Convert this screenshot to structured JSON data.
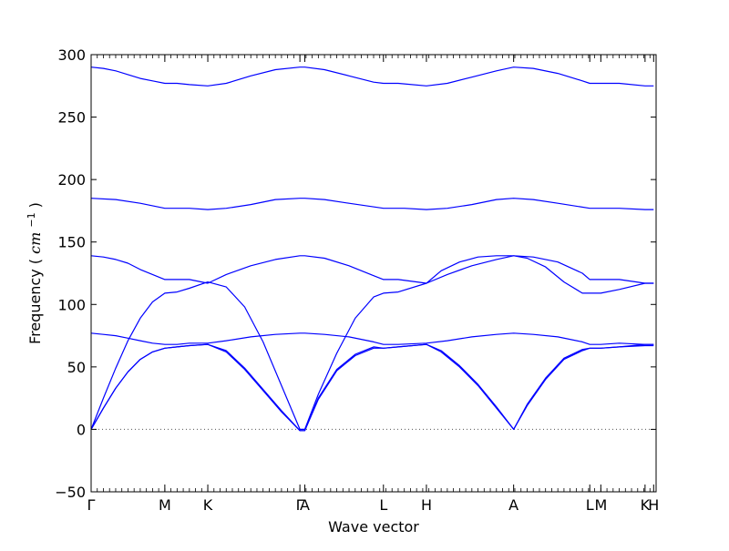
{
  "chart_data": {
    "type": "line",
    "title": "",
    "xlabel": "Wave vector",
    "ylabel": "Frequency",
    "ylabel_unit": "cm",
    "ylabel_unit_exp": "−1",
    "ylim": [
      -50,
      300
    ],
    "yticks": [
      -50,
      0,
      50,
      100,
      150,
      200,
      250,
      300
    ],
    "ytick_labels": [
      "−50",
      "0",
      "50",
      "100",
      "150",
      "200",
      "250",
      "300"
    ],
    "xlim": [
      0,
      4.6
    ],
    "xticks": [
      {
        "x": 0.0,
        "label": "Γ"
      },
      {
        "x": 0.6,
        "label": "M"
      },
      {
        "x": 0.95,
        "label": "K"
      },
      {
        "x": 1.7,
        "label": "Γ"
      },
      {
        "x": 1.74,
        "label": "A"
      },
      {
        "x": 2.38,
        "label": "L"
      },
      {
        "x": 2.73,
        "label": "H"
      },
      {
        "x": 3.44,
        "label": "A"
      },
      {
        "x": 4.06,
        "label": "L"
      },
      {
        "x": 4.15,
        "label": "M"
      },
      {
        "x": 4.51,
        "label": "K"
      },
      {
        "x": 4.58,
        "label": "H"
      }
    ],
    "zero_line": {
      "y": 0,
      "style": "dotted",
      "color": "#555555"
    },
    "line_color": "#0000ff",
    "grid": false,
    "series": [
      {
        "x": [
          0.0,
          0.1,
          0.2,
          0.3,
          0.4,
          0.5,
          0.6,
          0.7,
          0.8,
          0.95,
          1.1,
          1.3,
          1.5,
          1.7,
          1.74,
          1.9,
          2.1,
          2.3,
          2.38,
          2.5,
          2.73,
          2.9,
          3.1,
          3.3,
          3.44,
          3.6,
          3.8,
          4.0,
          4.06,
          4.15,
          4.3,
          4.51,
          4.58
        ],
        "y": [
          290,
          289,
          287,
          284,
          281,
          279,
          277,
          277,
          276,
          275,
          277,
          283,
          288,
          290,
          290,
          288,
          283,
          278,
          277,
          277,
          275,
          277,
          282,
          287,
          290,
          289,
          285,
          279,
          277,
          277,
          277,
          275,
          275
        ]
      },
      {
        "x": [
          0.0,
          0.2,
          0.4,
          0.6,
          0.8,
          0.95,
          1.1,
          1.3,
          1.5,
          1.7,
          1.74,
          1.9,
          2.1,
          2.38,
          2.55,
          2.73,
          2.9,
          3.1,
          3.3,
          3.44,
          3.6,
          3.8,
          4.06,
          4.15,
          4.3,
          4.51,
          4.58
        ],
        "y": [
          185,
          184,
          181,
          177,
          177,
          176,
          177,
          180,
          184,
          185,
          185,
          184,
          181,
          177,
          177,
          176,
          177,
          180,
          184,
          185,
          184,
          181,
          177,
          177,
          177,
          176,
          176
        ]
      },
      {
        "x": [
          0.0,
          0.1,
          0.2,
          0.3,
          0.4,
          0.5,
          0.6,
          0.7,
          0.8,
          0.95,
          1.1,
          1.3,
          1.5,
          1.7,
          1.74,
          1.9,
          2.1,
          2.3,
          2.38,
          2.5,
          2.73,
          2.9,
          3.1,
          3.3,
          3.44,
          3.6,
          3.8,
          4.0,
          4.06,
          4.15,
          4.3,
          4.51,
          4.58
        ],
        "y": [
          139,
          138,
          136,
          133,
          128,
          124,
          120,
          120,
          120,
          117,
          124,
          131,
          136,
          139,
          139,
          137,
          131,
          123,
          120,
          120,
          117,
          124,
          131,
          136,
          139,
          138,
          134,
          125,
          120,
          120,
          120,
          117,
          117
        ]
      },
      {
        "x": [
          0.0,
          0.1,
          0.2,
          0.3,
          0.4,
          0.5,
          0.6,
          0.7,
          0.8,
          0.95,
          1.1,
          1.25,
          1.4,
          1.55,
          1.7,
          1.74,
          1.85,
          2.0,
          2.15,
          2.3,
          2.38,
          2.5,
          2.73,
          2.85,
          3.0,
          3.15,
          3.3,
          3.44,
          3.55,
          3.7,
          3.85,
          4.0,
          4.06,
          4.15,
          4.3,
          4.51,
          4.58
        ],
        "y": [
          0,
          25,
          49,
          71,
          89,
          102,
          109,
          110,
          113,
          118,
          114,
          98,
          70,
          35,
          0,
          0,
          28,
          61,
          89,
          106,
          109,
          110,
          117,
          127,
          134,
          138,
          139,
          139,
          137,
          130,
          118,
          109,
          109,
          109,
          112,
          117,
          117
        ]
      },
      {
        "x": [
          0.0,
          0.1,
          0.2,
          0.3,
          0.4,
          0.5,
          0.6,
          0.7,
          0.8,
          0.95,
          1.1,
          1.3,
          1.5,
          1.7,
          1.74,
          1.9,
          2.1,
          2.3,
          2.38,
          2.5,
          2.73,
          2.9,
          3.1,
          3.3,
          3.44,
          3.6,
          3.8,
          4.0,
          4.06,
          4.15,
          4.3,
          4.51,
          4.58
        ],
        "y": [
          77,
          76,
          75,
          73,
          71,
          69,
          68,
          68,
          69,
          69,
          71,
          74,
          76,
          77,
          77,
          76,
          74,
          70,
          68,
          68,
          69,
          71,
          74,
          76,
          77,
          76,
          74,
          70,
          68,
          68,
          69,
          68,
          68
        ]
      },
      {
        "x": [
          0.0,
          0.1,
          0.2,
          0.3,
          0.4,
          0.5,
          0.6,
          0.7,
          0.8,
          0.95,
          1.1,
          1.25,
          1.4,
          1.55,
          1.7,
          1.74,
          1.85,
          2.0,
          2.15,
          2.3,
          2.38,
          2.5,
          2.73,
          2.85,
          3.0,
          3.15,
          3.3,
          3.44,
          3.55,
          3.7,
          3.85,
          4.0,
          4.06,
          4.15,
          4.3,
          4.51,
          4.58
        ],
        "y": [
          0,
          17,
          33,
          46,
          56,
          62,
          65,
          66,
          67,
          68,
          62,
          48,
          31,
          14,
          -1,
          -1,
          25,
          48,
          60,
          66,
          65,
          66,
          68,
          62,
          50,
          35,
          17,
          0,
          20,
          41,
          57,
          64,
          65,
          65,
          66,
          67,
          67
        ]
      },
      {
        "x": [
          0.0,
          0.1,
          0.2,
          0.3,
          0.4,
          0.5,
          0.6,
          0.7,
          0.8,
          0.95,
          1.1,
          1.25,
          1.4,
          1.55,
          1.7,
          1.74,
          1.85,
          2.0,
          2.15,
          2.3,
          2.38,
          2.5,
          2.73,
          2.85,
          3.0,
          3.15,
          3.3,
          3.44,
          3.55,
          3.7,
          3.85,
          4.0,
          4.06,
          4.15,
          4.3,
          4.51,
          4.58
        ],
        "y": [
          0,
          17,
          33,
          46,
          56,
          62,
          65,
          66,
          67,
          68,
          63,
          49,
          32,
          15,
          -1,
          -1,
          24,
          47,
          59,
          65,
          65,
          66,
          68,
          63,
          51,
          36,
          18,
          0,
          19,
          40,
          56,
          63,
          65,
          65,
          66,
          68,
          68
        ]
      }
    ]
  }
}
